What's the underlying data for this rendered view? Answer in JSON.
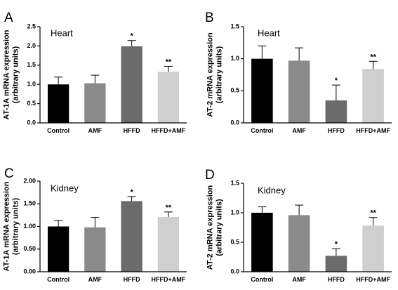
{
  "chart_data": [
    {
      "type": "bar",
      "panel": "A",
      "title": "Heart",
      "ylabel": "AT-1A mRNA expression\n(arbitrary units)",
      "xlabel": "",
      "categories": [
        "Control",
        "AMF",
        "HFFD",
        "HFFD+AMF"
      ],
      "values": [
        1.0,
        1.03,
        1.99,
        1.33
      ],
      "errors": [
        0.19,
        0.21,
        0.15,
        0.14
      ],
      "significance": [
        "",
        "",
        "*",
        "**"
      ],
      "ylim": [
        0,
        2.5
      ],
      "yticks": [
        "0.0",
        "0.5",
        "1.0",
        "1.5",
        "2.0",
        "2.5"
      ],
      "yticks_values": [
        0,
        0.5,
        1.0,
        1.5,
        2.0,
        2.5
      ],
      "bar_colors": [
        "#000000",
        "#8a8a8a",
        "#6b6b6b",
        "#cfcfcf"
      ],
      "grid": false,
      "legend": "none"
    },
    {
      "type": "bar",
      "panel": "B",
      "title": "Heart",
      "ylabel": "AT-2 mRNA expression\n(arbitrary units)",
      "xlabel": "",
      "categories": [
        "Control",
        "AMF",
        "HFFD",
        "HFFD+AMF"
      ],
      "values": [
        1.0,
        0.97,
        0.35,
        0.84
      ],
      "errors": [
        0.2,
        0.2,
        0.24,
        0.12
      ],
      "significance": [
        "",
        "",
        "*",
        "**"
      ],
      "ylim": [
        0,
        1.5
      ],
      "yticks": [
        "0.0",
        "0.5",
        "1.0",
        "1.5"
      ],
      "yticks_values": [
        0,
        0.5,
        1.0,
        1.5
      ],
      "bar_colors": [
        "#000000",
        "#8a8a8a",
        "#6b6b6b",
        "#cfcfcf"
      ],
      "grid": false,
      "legend": "none"
    },
    {
      "type": "bar",
      "panel": "C",
      "title": "Kidney",
      "ylabel": "AT-1A mRNA expression\n(arbitrary units)",
      "xlabel": "",
      "categories": [
        "Control",
        "AMF",
        "HFFD",
        "HFFD+AMF"
      ],
      "values": [
        1.0,
        0.98,
        1.56,
        1.21
      ],
      "errors": [
        0.13,
        0.22,
        0.1,
        0.11
      ],
      "significance": [
        "",
        "",
        "*",
        "**"
      ],
      "ylim": [
        0,
        2.0
      ],
      "yticks": [
        "0.00",
        "0.50",
        "1.00",
        "1.50",
        "2.00"
      ],
      "yticks_values": [
        0,
        0.5,
        1.0,
        1.5,
        2.0
      ],
      "bar_colors": [
        "#000000",
        "#8a8a8a",
        "#6b6b6b",
        "#cfcfcf"
      ],
      "grid": false,
      "legend": "none"
    },
    {
      "type": "bar",
      "panel": "D",
      "title": "Kidney",
      "ylabel": "AT-2 mRNA expression\n(arbitrary units)",
      "xlabel": "",
      "categories": [
        "Control",
        "AMF",
        "HFFD",
        "HFFD+AMF"
      ],
      "values": [
        1.0,
        0.96,
        0.27,
        0.78
      ],
      "errors": [
        0.1,
        0.17,
        0.12,
        0.14
      ],
      "significance": [
        "",
        "",
        "*",
        "**"
      ],
      "ylim": [
        0,
        1.5
      ],
      "yticks": [
        "0.0",
        "0.5",
        "1.0",
        "1.5"
      ],
      "yticks_values": [
        0,
        0.5,
        1.0,
        1.5
      ],
      "bar_colors": [
        "#000000",
        "#8a8a8a",
        "#6b6b6b",
        "#cfcfcf"
      ],
      "grid": false,
      "legend": "none"
    }
  ]
}
